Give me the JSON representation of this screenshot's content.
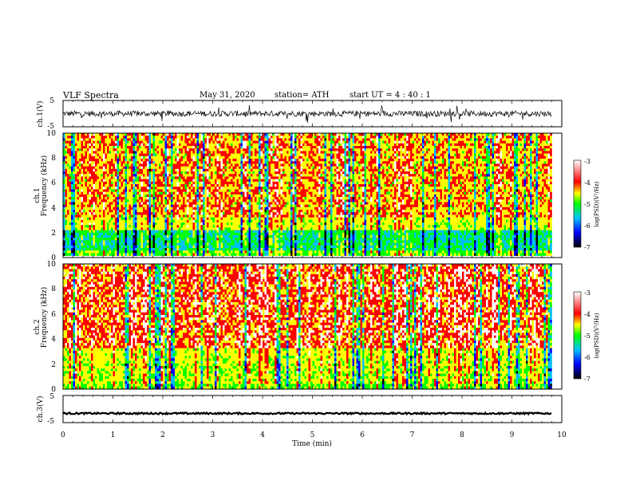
{
  "header": {
    "title": "VLF  Spectra",
    "date": "May 31, 2020",
    "station": "station= ATH",
    "start": "start  UT  =   4  : 40 : 1"
  },
  "colors": {
    "scale": [
      "#000000",
      "#0000ff",
      "#00bfff",
      "#00ff00",
      "#ffff00",
      "#ff0000",
      "#ffffff"
    ]
  },
  "chart_data": [
    {
      "type": "line",
      "panel": "ch1-waveform",
      "ylabel": "ch.1(V)",
      "yticks": [
        "5",
        "-5"
      ],
      "ylim": [
        -5,
        5
      ],
      "x_range_min": [
        0,
        9.8
      ],
      "typical_range": [
        -1.2,
        1.2
      ]
    },
    {
      "type": "heatmap",
      "panel": "ch1-spectrogram",
      "ylabel_lines": [
        "ch.1",
        "Frequency  (kHz)"
      ],
      "yticks": [
        "0",
        "2",
        "4",
        "6",
        "8",
        "10"
      ],
      "ylim_khz": [
        0,
        10
      ],
      "x_range_min": [
        0,
        9.8
      ],
      "colorbar": {
        "label": "log(PSD)(V²/Hz)",
        "ticks": [
          "-3",
          "-4",
          "-5",
          "-6",
          "-7"
        ],
        "range": [
          -7,
          -3
        ]
      }
    },
    {
      "type": "heatmap",
      "panel": "ch2-spectrogram",
      "ylabel_lines": [
        "ch.2",
        "Frequency  (kHz)"
      ],
      "yticks": [
        "0",
        "2",
        "4",
        "6",
        "8",
        "10"
      ],
      "ylim_khz": [
        0,
        10
      ],
      "x_range_min": [
        0,
        9.8
      ],
      "colorbar": {
        "label": "log(PSD)(V²/Hz)",
        "ticks": [
          "-3",
          "-4",
          "-5",
          "-6",
          "-7"
        ],
        "range": [
          -7,
          -3
        ]
      }
    },
    {
      "type": "line",
      "panel": "ch3-waveform",
      "ylabel": "ch.3(V)",
      "yticks": [
        "5",
        "-5"
      ],
      "ylim": [
        -5,
        5
      ],
      "x_range_min": [
        0,
        9.8
      ],
      "typical_level": -1.6
    }
  ],
  "xaxis": {
    "label": "Time  (min)",
    "ticks": [
      "0",
      "1",
      "2",
      "3",
      "4",
      "5",
      "6",
      "7",
      "8",
      "9",
      "10"
    ],
    "range": [
      0,
      10
    ]
  }
}
